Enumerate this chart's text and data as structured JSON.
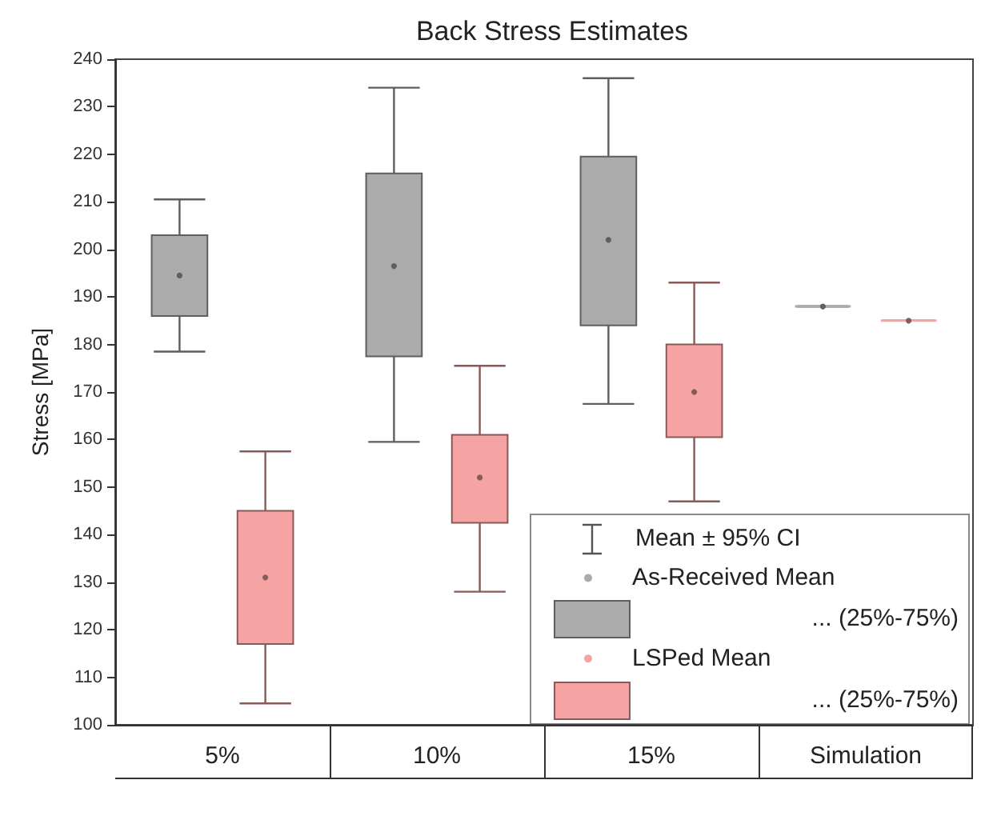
{
  "chart_data": {
    "type": "box",
    "title": "Back Stress Estimates",
    "ylabel": "Stress [MPa]",
    "categories": [
      "5%",
      "10%",
      "15%",
      "Simulation"
    ],
    "series": [
      {
        "name": "As-Received Mean",
        "color": "#ababab",
        "boxes": [
          {
            "low": 178.5,
            "q1": 186,
            "q3": 203,
            "high": 210.5,
            "mean": 194.5
          },
          {
            "low": 159.5,
            "q1": 177.5,
            "q3": 216,
            "high": 234,
            "mean": 196.5
          },
          {
            "low": 167.5,
            "q1": 184,
            "q3": 219.5,
            "high": 236,
            "mean": 202
          },
          {
            "low": 188,
            "q1": 188,
            "q3": 188,
            "high": 188,
            "mean": 188
          }
        ]
      },
      {
        "name": "LSPed Mean",
        "color": "#f5a3a3",
        "boxes": [
          {
            "low": 104.5,
            "q1": 117,
            "q3": 145,
            "high": 157.5,
            "mean": 131
          },
          {
            "low": 128,
            "q1": 142.5,
            "q3": 161,
            "high": 175.5,
            "mean": 152
          },
          {
            "low": 147,
            "q1": 160.5,
            "q3": 180,
            "high": 193,
            "mean": 170
          },
          {
            "low": 185,
            "q1": 185,
            "q3": 185,
            "high": 185,
            "mean": 185
          }
        ]
      }
    ],
    "annotations": [
      "Mean ± 95% CI",
      "... (25%-75%)",
      "... (25%-75%)"
    ],
    "ylim": [
      100,
      240
    ],
    "yticks": [
      100,
      110,
      120,
      130,
      140,
      150,
      160,
      170,
      180,
      190,
      200,
      210,
      220,
      230,
      240
    ],
    "grid": false,
    "legend": "bottom right"
  }
}
